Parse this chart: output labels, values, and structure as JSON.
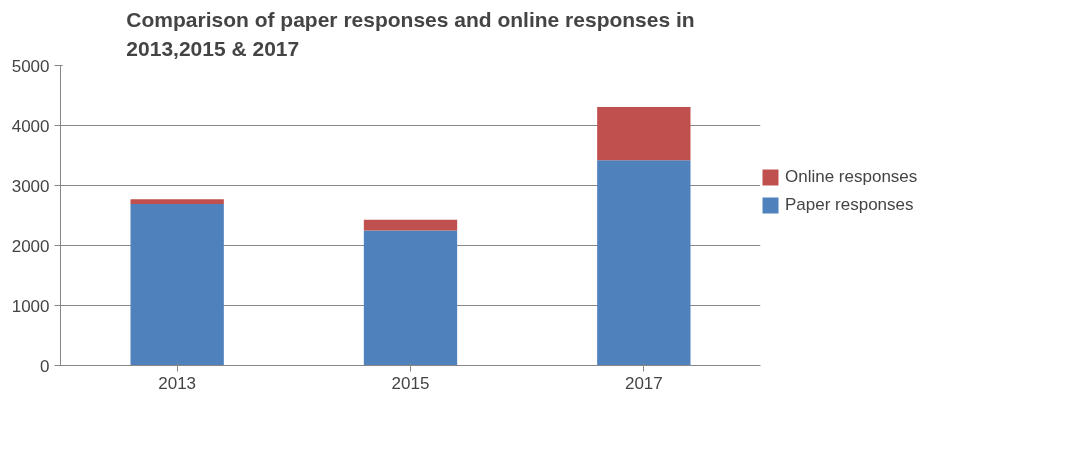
{
  "chart_data": {
    "type": "bar",
    "title": "Comparison of paper responses and online responses in\n2013,2015 & 2017",
    "categories": [
      "2013",
      "2015",
      "2017"
    ],
    "stacked": true,
    "series": [
      {
        "name": "Paper responses",
        "color": "#4f81bd",
        "values": [
          2690,
          2250,
          3420
        ]
      },
      {
        "name": "Online responses",
        "color": "#c0504d",
        "values": [
          80,
          180,
          890
        ]
      }
    ],
    "ylim": [
      0,
      5000
    ],
    "yticks": [
      0,
      1000,
      2000,
      3000,
      4000,
      5000
    ],
    "grid": "y",
    "legend": "right"
  }
}
